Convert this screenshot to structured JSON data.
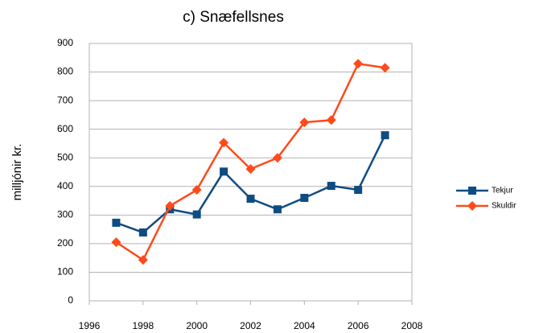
{
  "chart_data": {
    "type": "line",
    "title": "c)  Snæfellsnes",
    "y_label": "milljónir kr.",
    "x": [
      1997,
      1998,
      1999,
      2000,
      2001,
      2002,
      2003,
      2004,
      2005,
      2006,
      2007
    ],
    "series": [
      {
        "name": "Tekjur",
        "color": "#0f4c81",
        "marker": "square",
        "values": [
          273,
          239,
          320,
          302,
          452,
          357,
          320,
          360,
          402,
          388,
          579
        ]
      },
      {
        "name": "Skuldir",
        "color": "#ff4a1a",
        "marker": "diamond",
        "values": [
          205,
          143,
          332,
          388,
          553,
          461,
          500,
          624,
          632,
          829,
          815
        ]
      }
    ],
    "xlim": [
      1996,
      2008
    ],
    "xticks": [
      1996,
      1998,
      2000,
      2002,
      2004,
      2006,
      2008
    ],
    "ylim": [
      0,
      900
    ],
    "yticks": [
      0,
      100,
      200,
      300,
      400,
      500,
      600,
      700,
      800,
      900
    ],
    "grid": true,
    "legend": "right"
  }
}
